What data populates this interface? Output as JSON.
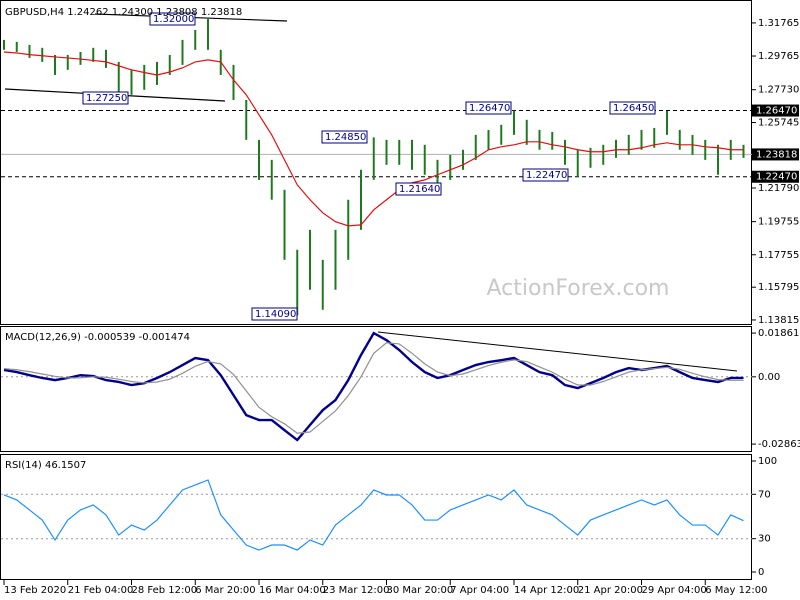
{
  "chart_data": [
    {
      "type": "ohlc",
      "title": "GBPUSD,H4  1.24262 1.24300 1.23808 1.23818",
      "categories": [
        "13 Feb 2020",
        null,
        null,
        null,
        null,
        "21 Feb 04:00",
        null,
        null,
        null,
        null,
        "28 Feb 12:00",
        null,
        null,
        null,
        null,
        "6 Mar 20:00",
        null,
        null,
        null,
        null,
        "16 Mar 04:00",
        null,
        null,
        null,
        null,
        "23 Mar 12:00",
        null,
        null,
        null,
        null,
        "30 Mar 20:00",
        null,
        null,
        null,
        null,
        "7 Apr 04:00",
        null,
        null,
        null,
        null,
        "14 Apr 12:00",
        null,
        null,
        null,
        null,
        "21 Apr 20:00",
        null,
        null,
        null,
        null,
        "29 Apr 04:00",
        null,
        null,
        null,
        null,
        "6 May 12:00",
        null,
        null,
        null
      ],
      "high": [
        1.3074,
        1.3062,
        1.3044,
        1.3026,
        1.2983,
        1.2983,
        1.3001,
        1.3026,
        1.3014,
        1.2941,
        1.2893,
        1.2923,
        1.2941,
        1.2983,
        1.3074,
        1.3134,
        1.32,
        1.3014,
        1.2923,
        1.2711,
        1.247,
        1.2349,
        1.2168,
        1.1806,
        1.1926,
        1.1745,
        1.1926,
        1.2108,
        1.2289,
        1.2485,
        1.247,
        1.247,
        1.247,
        1.244,
        1.2349,
        1.2379,
        1.241,
        1.25,
        1.253,
        1.2561,
        1.2647,
        1.2591,
        1.253,
        1.2518,
        1.247,
        1.241,
        1.2422,
        1.244,
        1.247,
        1.25,
        1.253,
        1.2542,
        1.2645,
        1.253,
        1.25,
        1.247,
        1.244,
        1.247,
        1.244
      ],
      "low": [
        1.3014,
        1.3001,
        1.2965,
        1.2941,
        1.2862,
        1.2893,
        1.2923,
        1.2941,
        1.2905,
        1.2725,
        1.2742,
        1.2772,
        1.2802,
        1.2862,
        1.2923,
        1.3014,
        1.3014,
        1.2862,
        1.2711,
        1.247,
        1.2228,
        1.2108,
        1.1745,
        1.1409,
        1.1564,
        1.1443,
        1.1564,
        1.1745,
        1.1926,
        1.2228,
        1.2319,
        1.2319,
        1.2289,
        1.2259,
        1.2164,
        1.2228,
        1.2289,
        1.2349,
        1.241,
        1.244,
        1.25,
        1.244,
        1.241,
        1.241,
        1.2319,
        1.2247,
        1.2301,
        1.2319,
        1.2361,
        1.2379,
        1.241,
        1.2422,
        1.25,
        1.241,
        1.2379,
        1.2349,
        1.2259,
        1.2349,
        1.2361
      ],
      "color": "#1f7a1f",
      "ma": {
        "color": "#e01010",
        "values": [
          1.3001,
          1.2995,
          1.2985,
          1.2978,
          1.2971,
          1.2965,
          1.2958,
          1.295,
          1.2941,
          1.2917,
          1.2893,
          1.2877,
          1.2862,
          1.288,
          1.2905,
          1.2941,
          1.2953,
          1.2941,
          1.2832,
          1.2742,
          1.2621,
          1.25,
          1.2349,
          1.2198,
          1.2108,
          1.2029,
          1.1975,
          1.195,
          1.1956,
          1.2047,
          1.2108,
          1.2168,
          1.221,
          1.2228,
          1.2259,
          1.2289,
          1.2319,
          1.2361,
          1.241,
          1.2428,
          1.244,
          1.2458,
          1.2458,
          1.244,
          1.2428,
          1.241,
          1.2398,
          1.2398,
          1.241,
          1.241,
          1.2422,
          1.244,
          1.2452,
          1.244,
          1.244,
          1.2428,
          1.2422,
          1.241,
          1.241
        ]
      },
      "ylim": [
        1.1351,
        1.3303
      ],
      "yticks": [
        1.31765,
        1.29765,
        {
          "value": 1.2773,
          "label": "1.27730"
        },
        1.25745,
        {
          "value": 1.2179,
          "label": "1.21790"
        },
        1.19755,
        1.17755,
        1.15795,
        1.13815
      ],
      "levels": [
        {
          "value": 1.2647,
          "label": "1.26470",
          "style": "dashed"
        },
        {
          "value": 1.23818,
          "label": "1.23818",
          "style": "solid"
        },
        {
          "value": 1.2247,
          "label": "1.22470",
          "style": "dashed"
        }
      ],
      "annotations": [
        "1.32000",
        "1.27250",
        "1.14090",
        "1.24850",
        "1.21640",
        "1.26470",
        "1.22470",
        "1.26450"
      ],
      "watermark": "ActionForex.com"
    },
    {
      "type": "line",
      "title": "MACD(12,26,9) -0.000539 -0.001474",
      "series": [
        {
          "color": "#00008b",
          "values": [
            0.0029,
            0.002,
            0.0007,
            -0.0005,
            -0.0014,
            -0.0005,
            0.0007,
            0.0003,
            -0.0014,
            -0.0022,
            -0.0035,
            -0.0027,
            -0.0005,
            0.002,
            0.005,
            0.008,
            0.0071,
            0.0007,
            -0.0078,
            -0.0163,
            -0.0184,
            -0.0184,
            -0.0227,
            -0.0269,
            -0.0205,
            -0.0142,
            -0.0099,
            -0.0014,
            0.0093,
            0.0186,
            0.0156,
            0.0114,
            0.0063,
            0.002,
            -0.0005,
            0.0007,
            0.0029,
            0.005,
            0.0063,
            0.0071,
            0.008,
            0.005,
            0.002,
            0.0007,
            -0.0035,
            -0.0048,
            -0.0027,
            -0.0005,
            0.002,
            0.0037,
            0.0029,
            0.0037,
            0.0046,
            0.002,
            -0.0005,
            -0.0014,
            -0.0022,
            -0.0005,
            -0.0005
          ]
        },
        {
          "color": "#909090",
          "values": [
            0.0035,
            0.003,
            0.0022,
            0.0012,
            0.0002,
            -0.0005,
            -0.0004,
            0.0,
            -0.0002,
            -0.001,
            -0.002,
            -0.0026,
            -0.0022,
            -0.001,
            0.0015,
            0.0045,
            0.0065,
            0.0055,
            0.001,
            -0.006,
            -0.013,
            -0.017,
            -0.02,
            -0.024,
            -0.0235,
            -0.019,
            -0.0145,
            -0.008,
            0.0,
            0.01,
            0.0145,
            0.014,
            0.01,
            0.0055,
            0.002,
            0.0005,
            0.0012,
            0.003,
            0.0048,
            0.0062,
            0.0072,
            0.0065,
            0.0042,
            0.002,
            -0.001,
            -0.0035,
            -0.0035,
            -0.002,
            0.0,
            0.002,
            0.003,
            0.0035,
            0.004,
            0.0032,
            0.0015,
            0.0,
            -0.0012,
            -0.0015,
            -0.0015
          ]
        }
      ],
      "ylim": [
        -0.032,
        0.0212
      ],
      "yticks": [
        0.018615,
        {
          "value": 0,
          "label": "0.00"
        },
        -0.028631
      ],
      "levels": [
        0
      ]
    },
    {
      "type": "line",
      "title": "RSI(14) 46.1507",
      "series": [
        {
          "color": "#1e90ff",
          "values": [
            69.4,
            64.9,
            55.9,
            46.8,
            28.8,
            46.8,
            55.9,
            60.4,
            51.4,
            33.3,
            42.3,
            37.8,
            46.8,
            60.4,
            73.9,
            78.4,
            82.9,
            51.4,
            37.8,
            24.3,
            19.8,
            24.3,
            24.3,
            19.8,
            28.8,
            24.3,
            42.3,
            51.4,
            60.4,
            73.9,
            69.4,
            69.4,
            60.4,
            46.8,
            46.8,
            55.9,
            60.4,
            64.9,
            69.4,
            64.9,
            73.9,
            60.4,
            55.9,
            51.4,
            42.3,
            33.3,
            46.8,
            51.4,
            55.9,
            60.4,
            64.9,
            60.4,
            64.9,
            51.4,
            42.3,
            42.3,
            33.3,
            51.4,
            46.2
          ]
        }
      ],
      "ylim": [
        -7.2,
        105.4
      ],
      "yticks": [
        100,
        70,
        30,
        0
      ],
      "levels": [
        70,
        30
      ]
    }
  ]
}
